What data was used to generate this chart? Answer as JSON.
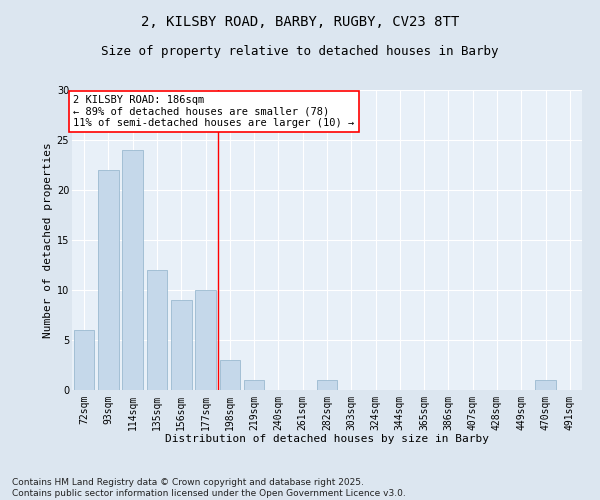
{
  "title_line1": "2, KILSBY ROAD, BARBY, RUGBY, CV23 8TT",
  "title_line2": "Size of property relative to detached houses in Barby",
  "xlabel": "Distribution of detached houses by size in Barby",
  "ylabel": "Number of detached properties",
  "categories": [
    "72sqm",
    "93sqm",
    "114sqm",
    "135sqm",
    "156sqm",
    "177sqm",
    "198sqm",
    "219sqm",
    "240sqm",
    "261sqm",
    "282sqm",
    "303sqm",
    "324sqm",
    "344sqm",
    "365sqm",
    "386sqm",
    "407sqm",
    "428sqm",
    "449sqm",
    "470sqm",
    "491sqm"
  ],
  "values": [
    6,
    22,
    24,
    12,
    9,
    10,
    3,
    1,
    0,
    0,
    1,
    0,
    0,
    0,
    0,
    0,
    0,
    0,
    0,
    1,
    0
  ],
  "bar_color": "#c5d8ea",
  "bar_edge_color": "#9bbad0",
  "vline_x": 5.5,
  "vline_color": "red",
  "ylim": [
    0,
    30
  ],
  "yticks": [
    0,
    5,
    10,
    15,
    20,
    25,
    30
  ],
  "annotation_text": "2 KILSBY ROAD: 186sqm\n← 89% of detached houses are smaller (78)\n11% of semi-detached houses are larger (10) →",
  "annotation_box_color": "#ffffff",
  "annotation_box_edge": "red",
  "footer_line1": "Contains HM Land Registry data © Crown copyright and database right 2025.",
  "footer_line2": "Contains public sector information licensed under the Open Government Licence v3.0.",
  "bg_color": "#dce6f0",
  "plot_bg_color": "#e8f0f8",
  "grid_color": "#ffffff",
  "title_fontsize": 10,
  "subtitle_fontsize": 9,
  "axis_label_fontsize": 8,
  "tick_fontsize": 7,
  "annotation_fontsize": 7.5,
  "footer_fontsize": 6.5
}
